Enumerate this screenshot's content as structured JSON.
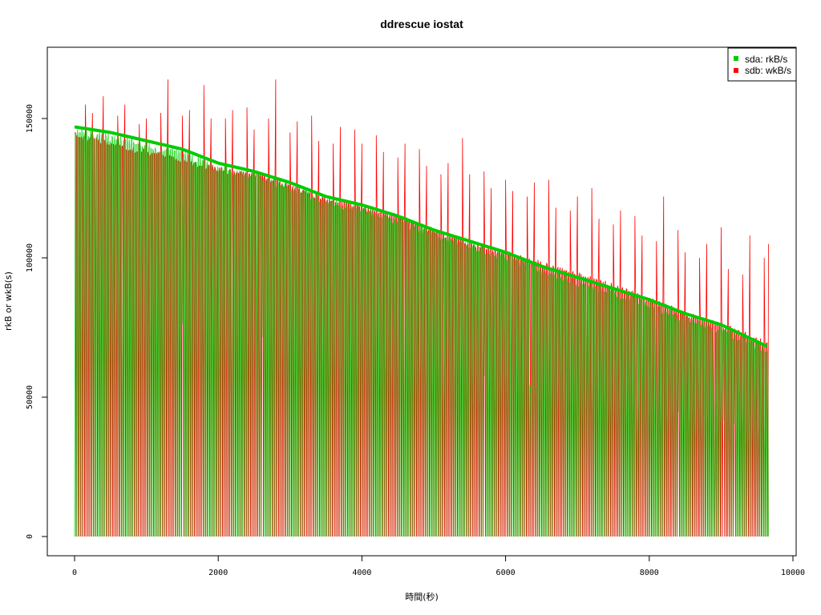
{
  "chart_data": {
    "type": "line",
    "title": "ddrescue iostat",
    "xlabel": "時間(秒)",
    "ylabel": "rkB or wkB(s)",
    "xlim": [
      0,
      10000
    ],
    "ylim": [
      0,
      175000
    ],
    "x_ticks": [
      0,
      2000,
      4000,
      6000,
      8000,
      10000
    ],
    "y_ticks": [
      0,
      50000,
      100000,
      150000
    ],
    "legend_position": "top-right",
    "grid": false,
    "sample_interval_s": 10,
    "x_end": 9660,
    "series": [
      {
        "name": "sda: rkB/s",
        "color": "#00cc00",
        "envelope": [
          [
            0,
            147000
          ],
          [
            500,
            145000
          ],
          [
            1000,
            142000
          ],
          [
            1500,
            139000
          ],
          [
            2000,
            134000
          ],
          [
            2500,
            131000
          ],
          [
            3000,
            127000
          ],
          [
            3500,
            122000
          ],
          [
            4000,
            119000
          ],
          [
            4500,
            115000
          ],
          [
            5000,
            110000
          ],
          [
            5500,
            106000
          ],
          [
            6000,
            102000
          ],
          [
            6500,
            97000
          ],
          [
            7000,
            93000
          ],
          [
            7500,
            89000
          ],
          [
            8000,
            85000
          ],
          [
            8500,
            80000
          ],
          [
            9000,
            76000
          ],
          [
            9660,
            68000
          ]
        ]
      },
      {
        "name": "sdb: wkB/s",
        "color": "#ff0000",
        "envelope": [
          [
            0,
            145000
          ],
          [
            500,
            142000
          ],
          [
            1000,
            139000
          ],
          [
            1500,
            136000
          ],
          [
            2000,
            133000
          ],
          [
            2500,
            131000
          ],
          [
            3000,
            127000
          ],
          [
            3500,
            122000
          ],
          [
            4000,
            119000
          ],
          [
            4500,
            116000
          ],
          [
            5000,
            111000
          ],
          [
            5500,
            106000
          ],
          [
            6000,
            103000
          ],
          [
            6500,
            99000
          ],
          [
            7000,
            95000
          ],
          [
            7500,
            91000
          ],
          [
            8000,
            86000
          ],
          [
            8500,
            81000
          ],
          [
            9000,
            77000
          ],
          [
            9660,
            70000
          ]
        ],
        "spikes": [
          [
            50,
            169000
          ],
          [
            150,
            155000
          ],
          [
            250,
            152000
          ],
          [
            350,
            155000
          ],
          [
            400,
            158000
          ],
          [
            500,
            150000
          ],
          [
            600,
            151000
          ],
          [
            700,
            155000
          ],
          [
            800,
            153000
          ],
          [
            900,
            148000
          ],
          [
            1000,
            150000
          ],
          [
            1100,
            155000
          ],
          [
            1200,
            152000
          ],
          [
            1300,
            164000
          ],
          [
            1400,
            155000
          ],
          [
            1500,
            151000
          ],
          [
            1600,
            153000
          ],
          [
            1700,
            156000
          ],
          [
            1800,
            162000
          ],
          [
            1900,
            150000
          ],
          [
            2000,
            160000
          ],
          [
            2100,
            150000
          ],
          [
            2200,
            153000
          ],
          [
            2300,
            148000
          ],
          [
            2400,
            154000
          ],
          [
            2500,
            146000
          ],
          [
            2600,
            152000
          ],
          [
            2700,
            150000
          ],
          [
            2800,
            164000
          ],
          [
            2900,
            153000
          ],
          [
            3000,
            145000
          ],
          [
            3100,
            149000
          ],
          [
            3200,
            144000
          ],
          [
            3300,
            151000
          ],
          [
            3400,
            142000
          ],
          [
            3500,
            148000
          ],
          [
            3600,
            141000
          ],
          [
            3700,
            147000
          ],
          [
            3800,
            142000
          ],
          [
            3900,
            146000
          ],
          [
            4000,
            141000
          ],
          [
            4100,
            140000
          ],
          [
            4200,
            144000
          ],
          [
            4300,
            138000
          ],
          [
            4400,
            140000
          ],
          [
            4500,
            136000
          ],
          [
            4600,
            141000
          ],
          [
            4700,
            135000
          ],
          [
            4800,
            139000
          ],
          [
            4900,
            133000
          ],
          [
            5000,
            136000
          ],
          [
            5100,
            130000
          ],
          [
            5200,
            134000
          ],
          [
            5300,
            131000
          ],
          [
            5400,
            143000
          ],
          [
            5500,
            130000
          ],
          [
            5600,
            126000
          ],
          [
            5700,
            131000
          ],
          [
            5800,
            125000
          ],
          [
            5900,
            132000
          ],
          [
            6000,
            128000
          ],
          [
            6100,
            124000
          ],
          [
            6200,
            130000
          ],
          [
            6300,
            122000
          ],
          [
            6400,
            127000
          ],
          [
            6500,
            120000
          ],
          [
            6600,
            128000
          ],
          [
            6700,
            118000
          ],
          [
            6800,
            124000
          ],
          [
            6900,
            117000
          ],
          [
            7000,
            122000
          ],
          [
            7100,
            116000
          ],
          [
            7200,
            125000
          ],
          [
            7300,
            114000
          ],
          [
            7400,
            119000
          ],
          [
            7500,
            112000
          ],
          [
            7600,
            117000
          ],
          [
            7700,
            110000
          ],
          [
            7800,
            115000
          ],
          [
            7900,
            108000
          ],
          [
            8000,
            113000
          ],
          [
            8100,
            106000
          ],
          [
            8200,
            122000
          ],
          [
            8300,
            104000
          ],
          [
            8400,
            110000
          ],
          [
            8500,
            102000
          ],
          [
            8600,
            107000
          ],
          [
            8700,
            100000
          ],
          [
            8800,
            105000
          ],
          [
            8900,
            98000
          ],
          [
            9000,
            111000
          ],
          [
            9100,
            96000
          ],
          [
            9200,
            111000
          ],
          [
            9300,
            94000
          ],
          [
            9400,
            108000
          ],
          [
            9500,
            92000
          ],
          [
            9600,
            100000
          ],
          [
            9660,
            105000
          ]
        ]
      }
    ]
  }
}
